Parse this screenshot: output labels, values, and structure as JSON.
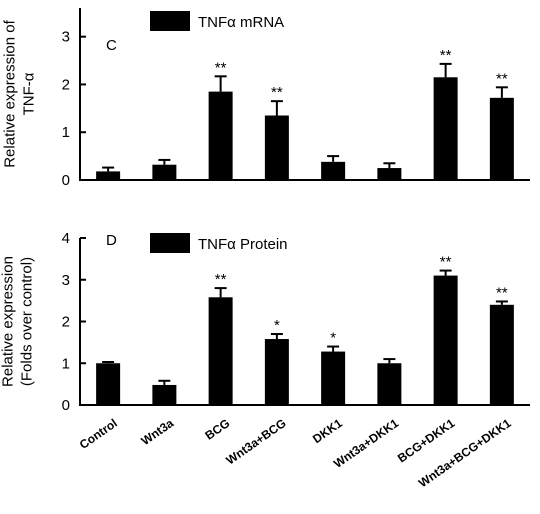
{
  "chart_data": [
    {
      "type": "bar",
      "panel_label": "C",
      "legend": [
        "TNFα mRNA"
      ],
      "ylabel_lines": [
        "Relative expression of",
        "TNF-α"
      ],
      "ylim": [
        0,
        3.6
      ],
      "yticks": [
        "0",
        "1",
        "2",
        "3"
      ],
      "legend_position": "top-left",
      "grid": false,
      "categories": [
        "Control",
        "Wnt3a",
        "BCG",
        "Wnt3a+BCG",
        "DKK1",
        "Wnt3a+DKK1",
        "BCG+DKK1",
        "Wnt3a+BCG+DKK1"
      ],
      "series": [
        {
          "values": [
            0.18,
            0.32,
            1.85,
            1.35,
            0.38,
            0.25,
            2.15,
            1.72
          ],
          "errors": [
            0.08,
            0.1,
            0.32,
            0.3,
            0.12,
            0.1,
            0.28,
            0.22
          ],
          "significance": [
            "",
            "",
            "**",
            "**",
            "",
            "",
            "**",
            "**"
          ]
        }
      ]
    },
    {
      "type": "bar",
      "panel_label": "D",
      "legend": [
        "TNFα Protein"
      ],
      "ylabel_lines": [
        "Relative expression",
        "(Folds over control)"
      ],
      "ylim": [
        0,
        4
      ],
      "yticks": [
        "0",
        "1",
        "2",
        "3",
        "4"
      ],
      "legend_position": "top-left",
      "grid": false,
      "categories": [
        "Control",
        "Wnt3a",
        "BCG",
        "Wnt3a+BCG",
        "DKK1",
        "Wnt3a+DKK1",
        "BCG+DKK1",
        "Wnt3a+BCG+DKK1"
      ],
      "series": [
        {
          "values": [
            1.0,
            0.48,
            2.58,
            1.58,
            1.28,
            1.0,
            3.1,
            2.4
          ],
          "errors": [
            0.03,
            0.1,
            0.22,
            0.12,
            0.12,
            0.1,
            0.12,
            0.08
          ],
          "significance": [
            "",
            "",
            "**",
            "*",
            "*",
            "",
            "**",
            "**"
          ]
        }
      ]
    }
  ]
}
